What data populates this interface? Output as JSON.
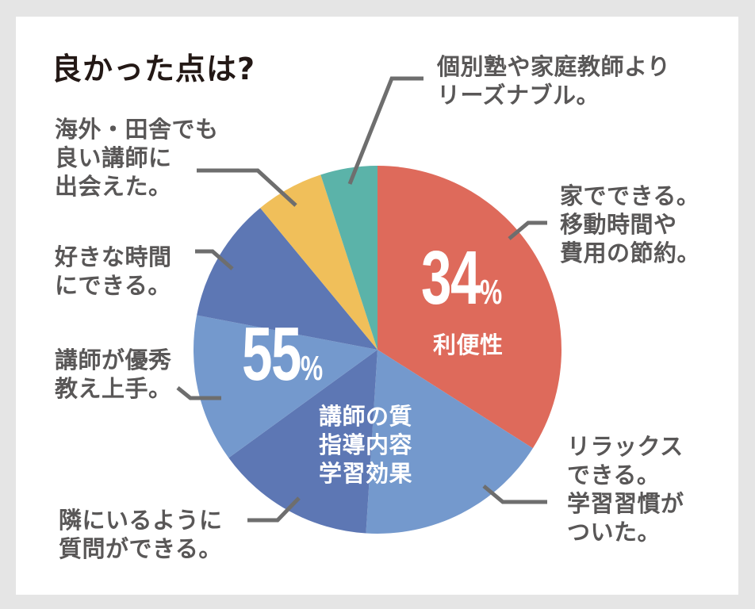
{
  "title": "良かった点は?",
  "colors": {
    "background": "#e5e5e5",
    "card": "#ffffff",
    "convenience_red": "#de6a5b",
    "blue_dark": "#5d77b4",
    "blue_light": "#7499cd",
    "yellow": "#f0bf5a",
    "teal": "#5bb3a9",
    "leader_line": "#6e6e6e",
    "label_text": "#595757",
    "title_text": "#231815"
  },
  "groups": {
    "convenience": {
      "percent": "34",
      "sign": "%",
      "label": "利便性"
    },
    "instructor": {
      "percent": "55",
      "sign": "%",
      "label": "講師の質\n指導内容\n学習効果"
    }
  },
  "labels": {
    "reasonable": "個別塾や家庭教師より\nリーズナブル。",
    "home": "家でできる。\n移動時間や\n費用の節約。",
    "relax": "リラックス\nできる。\n学習習慣が\nついた。",
    "neighbor": "隣にいるように\n質問ができる。",
    "excellent": "講師が優秀\n教え上手。",
    "favorite_time": "好きな時間\nにできる。",
    "overseas": "海外・田舎でも\n良い講師に\n出会えた。"
  },
  "chart_data": {
    "type": "pie",
    "title": "良かった点は?",
    "start_angle": "12 o'clock, clockwise",
    "categories": [
      "家でできる。移動時間や費用の節約。",
      "リラックスできる。学習習慣がついた。",
      "隣にいるように質問ができる。",
      "講師が優秀 教え上手。",
      "好きな時間にできる。",
      "海外・田舎でも良い講師に出会えた。",
      "個別塾や家庭教師よりリーズナブル。"
    ],
    "values": [
      34,
      17,
      14,
      13,
      11,
      6,
      5
    ],
    "slice_colors": [
      "#de6a5b",
      "#7499cd",
      "#5d77b4",
      "#7499cd",
      "#5d77b4",
      "#f0bf5a",
      "#5bb3a9"
    ],
    "group_annotations": [
      {
        "text": "34% 利便性",
        "slices": [
          0
        ],
        "total": 34
      },
      {
        "text": "55% 講師の質 指導内容 学習効果",
        "slices": [
          1,
          2,
          3,
          4
        ],
        "total": 55
      }
    ],
    "legend": "none (leader-line callouts)"
  }
}
